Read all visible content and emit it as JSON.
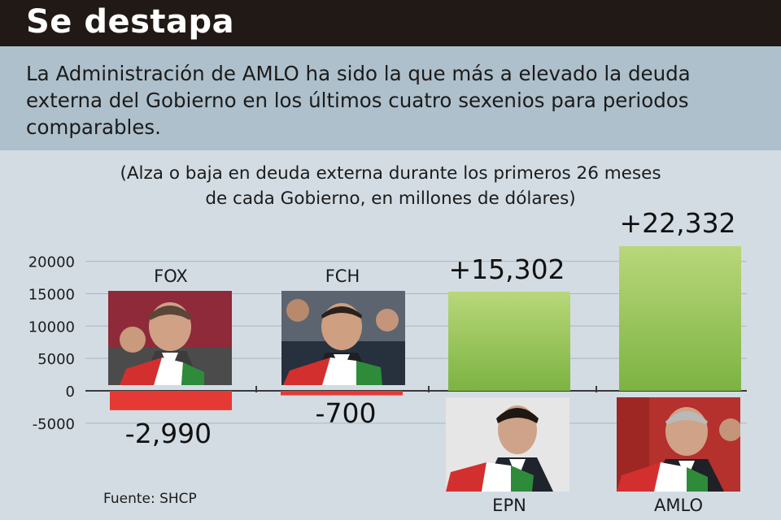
{
  "header": {
    "title": "Se destapa"
  },
  "subtitle": "La Administración de AMLO ha sido la que más a elevado la deuda externa del Gobierno en los últimos cuatro sexenios para periodos comparables.",
  "note": {
    "line1": "(Alza o baja en deuda externa durante los primeros 26 meses",
    "line2": "de cada Gobierno, en millones de dólares)"
  },
  "source": "Fuente: SHCP",
  "colors": {
    "positive": "#7cb342",
    "negative": "#e53935",
    "header_bg": "#211915",
    "band_bg": "#aec0cb",
    "chart_bg": "#d3dce3"
  },
  "chart_data": {
    "type": "bar",
    "categories": [
      "FOX",
      "FCH",
      "EPN",
      "AMLO"
    ],
    "values": [
      -2990,
      -700,
      15302,
      22332
    ],
    "value_labels": [
      "-2,990",
      "-700",
      "+15,302",
      "+22,332"
    ],
    "yticks": [
      -5000,
      0,
      5000,
      10000,
      15000,
      20000
    ],
    "ytick_labels": [
      "-5000",
      "0",
      "5000",
      "10000",
      "15000",
      "20000"
    ],
    "ylim": [
      -5000,
      22332
    ],
    "grid": true,
    "photo_icons": [
      "president-fox-photo",
      "president-fch-photo",
      "president-epn-photo",
      "president-amlo-photo"
    ]
  }
}
